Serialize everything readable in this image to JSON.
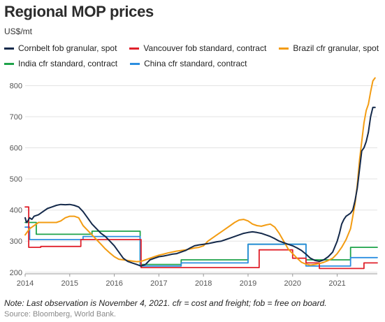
{
  "title": "Regional MOP prices",
  "unit_label": "US$/mt",
  "note": "Note: Last observation is November 4, 2021. cfr = cost and freight; fob = free on board.",
  "source": "Source: Bloomberg, World Bank.",
  "chart_data": {
    "type": "line",
    "title": "Regional MOP prices",
    "ylabel": "US$/mt",
    "xlabel": "",
    "xlim": [
      2014.0,
      2021.9
    ],
    "ylim": [
      195,
      835
    ],
    "yticks": [
      200,
      300,
      400,
      500,
      600,
      700,
      800
    ],
    "xticks": [
      2014,
      2015,
      2016,
      2017,
      2018,
      2019,
      2020,
      2021
    ],
    "grid": "horizontal",
    "legend_position": "top",
    "series": [
      {
        "name": "Cornbelt fob granular, spot",
        "color": "#14294a",
        "step": false,
        "x": [
          2014.0,
          2014.03,
          2014.06,
          2014.1,
          2014.15,
          2014.2,
          2014.3,
          2014.4,
          2014.5,
          2014.6,
          2014.7,
          2014.8,
          2014.9,
          2015.0,
          2015.1,
          2015.2,
          2015.3,
          2015.4,
          2015.5,
          2015.6,
          2015.7,
          2015.8,
          2015.9,
          2016.0,
          2016.1,
          2016.2,
          2016.3,
          2016.4,
          2016.5,
          2016.6,
          2016.7,
          2016.8,
          2016.9,
          2017.0,
          2017.1,
          2017.2,
          2017.3,
          2017.4,
          2017.5,
          2017.6,
          2017.7,
          2017.8,
          2017.9,
          2018.0,
          2018.1,
          2018.2,
          2018.3,
          2018.4,
          2018.5,
          2018.6,
          2018.7,
          2018.8,
          2018.9,
          2019.0,
          2019.1,
          2019.2,
          2019.3,
          2019.4,
          2019.5,
          2019.6,
          2019.7,
          2019.8,
          2019.9,
          2020.0,
          2020.1,
          2020.2,
          2020.3,
          2020.4,
          2020.5,
          2020.6,
          2020.7,
          2020.8,
          2020.9,
          2021.0,
          2021.05,
          2021.1,
          2021.15,
          2021.2,
          2021.25,
          2021.3,
          2021.35,
          2021.4,
          2021.45,
          2021.5,
          2021.55,
          2021.6,
          2021.65,
          2021.7,
          2021.75,
          2021.8,
          2021.85
        ],
        "y": [
          375,
          360,
          365,
          375,
          370,
          380,
          385,
          395,
          405,
          410,
          415,
          418,
          417,
          418,
          415,
          410,
          395,
          375,
          355,
          340,
          325,
          315,
          300,
          285,
          265,
          245,
          235,
          230,
          225,
          220,
          225,
          240,
          245,
          250,
          252,
          255,
          258,
          260,
          265,
          270,
          278,
          285,
          288,
          290,
          292,
          295,
          298,
          300,
          305,
          310,
          315,
          320,
          325,
          328,
          330,
          328,
          325,
          320,
          315,
          308,
          300,
          295,
          290,
          285,
          278,
          270,
          258,
          245,
          238,
          235,
          240,
          250,
          265,
          300,
          325,
          355,
          370,
          380,
          385,
          390,
          400,
          430,
          470,
          530,
          590,
          600,
          620,
          650,
          700,
          730,
          730
        ]
      },
      {
        "name": "Vancouver fob standard, contract",
        "color": "#e0212b",
        "step": true,
        "x": [
          2014.0,
          2014.08,
          2014.35,
          2014.75,
          2015.25,
          2015.75,
          2016.25,
          2016.6,
          2016.75,
          2017.25,
          2017.75,
          2018.25,
          2018.75,
          2019.25,
          2019.75,
          2020.0,
          2020.3,
          2020.6,
          2020.8,
          2021.0,
          2021.3,
          2021.6,
          2021.9
        ],
        "y": [
          410,
          280,
          283,
          283,
          305,
          305,
          305,
          215,
          215,
          215,
          215,
          215,
          215,
          272,
          272,
          245,
          230,
          212,
          212,
          212,
          212,
          230,
          230
        ]
      },
      {
        "name": "Brazil cfr granular, spot",
        "color": "#f39c12",
        "step": false,
        "x": [
          2014.0,
          2014.05,
          2014.1,
          2014.2,
          2014.3,
          2014.4,
          2014.5,
          2014.6,
          2014.7,
          2014.8,
          2014.9,
          2015.0,
          2015.1,
          2015.2,
          2015.3,
          2015.4,
          2015.5,
          2015.6,
          2015.7,
          2015.8,
          2015.9,
          2016.0,
          2016.1,
          2016.2,
          2016.3,
          2016.4,
          2016.5,
          2016.6,
          2016.7,
          2016.8,
          2016.9,
          2017.0,
          2017.1,
          2017.2,
          2017.3,
          2017.4,
          2017.5,
          2017.6,
          2017.7,
          2017.8,
          2017.9,
          2018.0,
          2018.1,
          2018.2,
          2018.3,
          2018.4,
          2018.5,
          2018.6,
          2018.7,
          2018.8,
          2018.9,
          2019.0,
          2019.1,
          2019.2,
          2019.3,
          2019.4,
          2019.5,
          2019.6,
          2019.7,
          2019.8,
          2019.9,
          2020.0,
          2020.1,
          2020.2,
          2020.3,
          2020.4,
          2020.5,
          2020.6,
          2020.7,
          2020.8,
          2020.9,
          2021.0,
          2021.1,
          2021.2,
          2021.3,
          2021.4,
          2021.45,
          2021.5,
          2021.55,
          2021.6,
          2021.65,
          2021.7,
          2021.75,
          2021.8,
          2021.85
        ],
        "y": [
          320,
          330,
          340,
          350,
          360,
          360,
          360,
          360,
          360,
          365,
          375,
          380,
          380,
          375,
          350,
          335,
          320,
          305,
          290,
          275,
          262,
          250,
          242,
          240,
          238,
          236,
          234,
          235,
          240,
          245,
          250,
          255,
          258,
          262,
          265,
          268,
          270,
          272,
          275,
          278,
          280,
          285,
          300,
          310,
          320,
          330,
          340,
          350,
          360,
          368,
          370,
          365,
          355,
          350,
          348,
          352,
          355,
          345,
          325,
          300,
          275,
          260,
          245,
          232,
          226,
          223,
          225,
          228,
          232,
          238,
          245,
          260,
          280,
          305,
          340,
          420,
          480,
          560,
          620,
          680,
          720,
          740,
          780,
          815,
          825
        ]
      },
      {
        "name": "India cfr standard, contract",
        "color": "#1fa34a",
        "step": true,
        "x": [
          2014.0,
          2014.25,
          2015.0,
          2015.5,
          2016.0,
          2016.3,
          2016.5,
          2016.58,
          2017.0,
          2017.5,
          2018.0,
          2018.5,
          2019.0,
          2019.5,
          2020.0,
          2020.3,
          2020.6,
          2021.0,
          2021.3,
          2021.6,
          2021.9
        ],
        "y": [
          360,
          322,
          322,
          332,
          332,
          332,
          332,
          225,
          225,
          240,
          240,
          240,
          290,
          290,
          290,
          240,
          240,
          240,
          280,
          280,
          280
        ]
      },
      {
        "name": "China cfr standard, contract",
        "color": "#2c8ee0",
        "step": true,
        "x": [
          2014.0,
          2014.1,
          2014.5,
          2015.0,
          2015.3,
          2015.8,
          2016.3,
          2016.58,
          2017.0,
          2017.5,
          2018.0,
          2018.5,
          2019.0,
          2019.5,
          2020.0,
          2020.3,
          2020.6,
          2021.0,
          2021.3,
          2021.6,
          2021.9
        ],
        "y": [
          345,
          305,
          305,
          305,
          315,
          315,
          315,
          220,
          220,
          230,
          230,
          230,
          290,
          290,
          290,
          220,
          220,
          220,
          247,
          247,
          247
        ]
      }
    ]
  }
}
